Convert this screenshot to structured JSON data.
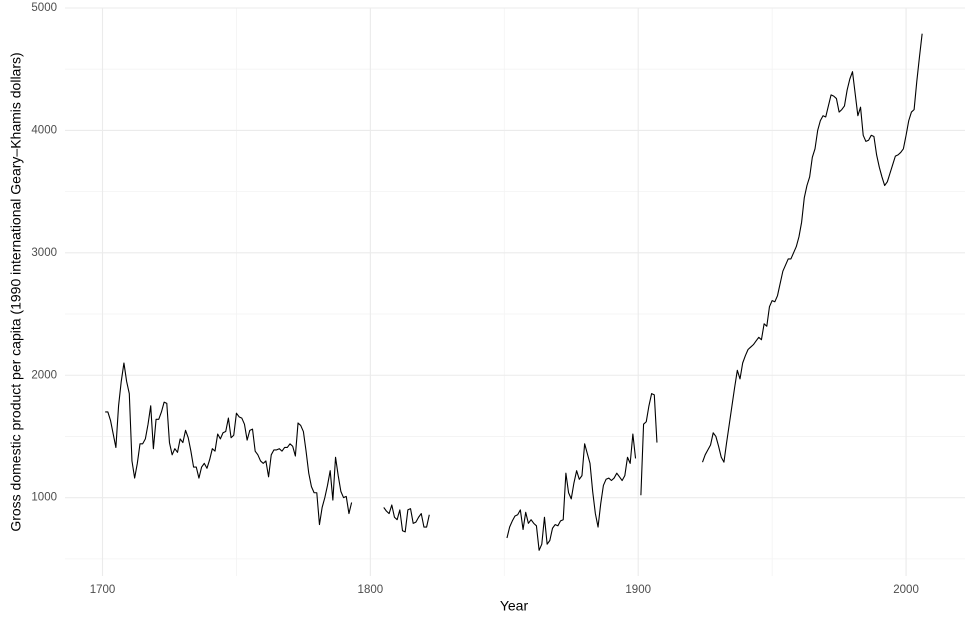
{
  "chart_data": {
    "type": "line",
    "x_label": "Year",
    "y_label": "Gross domestic product per capita (1990 international Geary–Khamis dollars)",
    "xlim": [
      1686,
      2022
    ],
    "xticks": [
      1700,
      1800,
      1900,
      2000
    ],
    "minor_xticks": [
      1750,
      1850,
      1950
    ],
    "ylim": [
      360,
      5000
    ],
    "yticks": [
      1000,
      2000,
      3000,
      4000,
      5000
    ],
    "minor_yticks": [
      500,
      1500,
      2500,
      3500,
      4500
    ],
    "grid": true,
    "x": [
      1701,
      1702,
      1703,
      1704,
      1705,
      1706,
      1707,
      1708,
      1709,
      1710,
      1711,
      1712,
      1713,
      1714,
      1715,
      1716,
      1717,
      1718,
      1719,
      1720,
      1721,
      1722,
      1723,
      1724,
      1725,
      1726,
      1727,
      1728,
      1729,
      1730,
      1731,
      1732,
      1733,
      1734,
      1735,
      1736,
      1737,
      1738,
      1739,
      1740,
      1741,
      1742,
      1743,
      1744,
      1745,
      1746,
      1747,
      1748,
      1749,
      1750,
      1751,
      1752,
      1753,
      1754,
      1755,
      1756,
      1757,
      1758,
      1759,
      1760,
      1761,
      1762,
      1763,
      1764,
      1765,
      1766,
      1767,
      1768,
      1769,
      1770,
      1771,
      1772,
      1773,
      1774,
      1775,
      1776,
      1777,
      1778,
      1779,
      1780,
      1781,
      1782,
      1783,
      1784,
      1785,
      1786,
      1787,
      1788,
      1789,
      1790,
      1791,
      1792,
      1793,
      1794,
      1795,
      1796,
      1797,
      1798,
      1799,
      1800,
      1801,
      1802,
      1803,
      1804,
      1805,
      1806,
      1807,
      1808,
      1809,
      1810,
      1811,
      1812,
      1813,
      1814,
      1815,
      1816,
      1817,
      1818,
      1819,
      1820,
      1821,
      1822,
      1823,
      1824,
      1825,
      1826,
      1827,
      1828,
      1829,
      1830,
      1831,
      1832,
      1833,
      1834,
      1835,
      1836,
      1837,
      1838,
      1839,
      1840,
      1841,
      1842,
      1843,
      1844,
      1845,
      1846,
      1847,
      1848,
      1849,
      1850,
      1851,
      1852,
      1853,
      1854,
      1855,
      1856,
      1857,
      1858,
      1859,
      1860,
      1861,
      1862,
      1863,
      1864,
      1865,
      1866,
      1867,
      1868,
      1869,
      1870,
      1871,
      1872,
      1873,
      1874,
      1875,
      1876,
      1877,
      1878,
      1879,
      1880,
      1881,
      1882,
      1883,
      1884,
      1885,
      1886,
      1887,
      1888,
      1889,
      1890,
      1891,
      1892,
      1893,
      1894,
      1895,
      1896,
      1897,
      1898,
      1899,
      1900,
      1901,
      1902,
      1903,
      1904,
      1905,
      1906,
      1907,
      1908,
      1909,
      1910,
      1911,
      1912,
      1913,
      1914,
      1915,
      1916,
      1917,
      1918,
      1919,
      1920,
      1921,
      1922,
      1923,
      1924,
      1925,
      1926,
      1927,
      1928,
      1929,
      1930,
      1931,
      1932,
      1933,
      1934,
      1935,
      1936,
      1937,
      1938,
      1939,
      1940,
      1941,
      1942,
      1943,
      1944,
      1945,
      1946,
      1947,
      1948,
      1949,
      1950,
      1951,
      1952,
      1953,
      1954,
      1955,
      1956,
      1957,
      1958,
      1959,
      1960,
      1961,
      1962,
      1963,
      1964,
      1965,
      1966,
      1967,
      1968,
      1969,
      1970,
      1971,
      1972,
      1973,
      1974,
      1975,
      1976,
      1977,
      1978,
      1979,
      1980,
      1981,
      1982,
      1983,
      1984,
      1985,
      1986,
      1987,
      1988,
      1989,
      1990,
      1991,
      1992,
      1993,
      1994,
      1995,
      1996,
      1997,
      1998,
      1999,
      2000,
      2001,
      2002,
      2003,
      2004,
      2005,
      2006
    ],
    "series": [
      {
        "color": "#000000",
        "values": [
          1700,
          1700,
          1630,
          1520,
          1410,
          1750,
          1950,
          2100,
          1950,
          1850,
          1300,
          1160,
          1280,
          1440,
          1440,
          1480,
          1600,
          1750,
          1400,
          1640,
          1640,
          1700,
          1780,
          1770,
          1450,
          1350,
          1400,
          1370,
          1480,
          1450,
          1550,
          1490,
          1380,
          1250,
          1250,
          1160,
          1250,
          1280,
          1240,
          1310,
          1400,
          1380,
          1520,
          1480,
          1530,
          1540,
          1650,
          1490,
          1510,
          1690,
          1660,
          1650,
          1600,
          1470,
          1550,
          1560,
          1380,
          1350,
          1300,
          1280,
          1300,
          1170,
          1350,
          1390,
          1390,
          1400,
          1380,
          1410,
          1410,
          1440,
          1420,
          1340,
          1610,
          1590,
          1540,
          1380,
          1200,
          1090,
          1040,
          1040,
          780,
          920,
          1000,
          1100,
          1220,
          980,
          1330,
          1180,
          1050,
          1000,
          1010,
          870,
          960,
          null,
          null,
          null,
          null,
          null,
          null,
          null,
          null,
          null,
          null,
          null,
          920,
          890,
          870,
          940,
          840,
          820,
          900,
          730,
          720,
          900,
          910,
          790,
          800,
          840,
          870,
          760,
          760,
          860,
          null,
          null,
          null,
          null,
          null,
          null,
          null,
          null,
          null,
          null,
          null,
          null,
          null,
          null,
          null,
          null,
          null,
          null,
          null,
          null,
          null,
          null,
          null,
          null,
          null,
          null,
          null,
          null,
          670,
          760,
          810,
          850,
          860,
          900,
          740,
          880,
          790,
          820,
          790,
          770,
          570,
          620,
          840,
          620,
          650,
          750,
          780,
          770,
          810,
          820,
          1200,
          1040,
          990,
          1120,
          1220,
          1150,
          1180,
          1440,
          1360,
          1280,
          1050,
          870,
          760,
          950,
          1100,
          1150,
          1160,
          1140,
          1160,
          1200,
          1170,
          1140,
          1180,
          1330,
          1280,
          1520,
          1320,
          null,
          1020,
          1600,
          1620,
          1750,
          1850,
          1840,
          1450,
          null,
          null,
          null,
          null,
          null,
          null,
          null,
          null,
          null,
          null,
          null,
          null,
          null,
          null,
          null,
          null,
          1290,
          1350,
          1390,
          1430,
          1530,
          1500,
          1420,
          1330,
          1290,
          1450,
          1600,
          1750,
          1900,
          2040,
          1970,
          2100,
          2160,
          2210,
          2230,
          2250,
          2280,
          2310,
          2290,
          2420,
          2400,
          2560,
          2610,
          2600,
          2650,
          2750,
          2850,
          2900,
          2950,
          2950,
          3000,
          3050,
          3130,
          3250,
          3450,
          3550,
          3620,
          3780,
          3850,
          4000,
          4080,
          4120,
          4110,
          4200,
          4290,
          4280,
          4260,
          4150,
          4170,
          4200,
          4330,
          4420,
          4480,
          4300,
          4120,
          4190,
          3960,
          3910,
          3920,
          3960,
          3950,
          3800,
          3700,
          3620,
          3550,
          3580,
          3650,
          3720,
          3790,
          3800,
          3820,
          3850,
          3960,
          4080,
          4150,
          4170,
          4400,
          4600,
          4790
        ]
      }
    ]
  }
}
